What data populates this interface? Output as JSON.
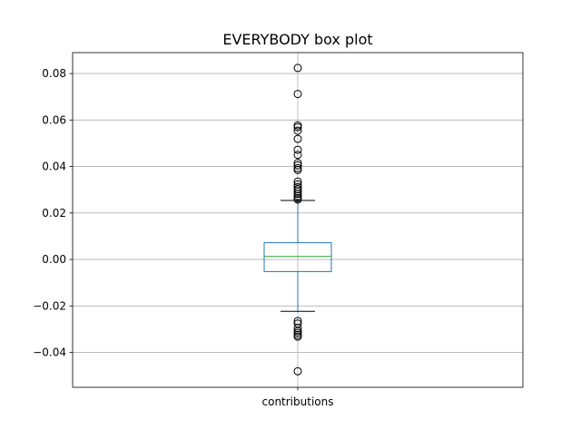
{
  "chart_data": {
    "type": "box",
    "title": "EVERYBODY box plot",
    "xlabel": "",
    "ylabel": "",
    "categories": [
      "contributions"
    ],
    "ylim": [
      -0.055,
      0.089
    ],
    "yticks": [
      {
        "value": -0.04,
        "label": "−0.04"
      },
      {
        "value": -0.02,
        "label": "−0.02"
      },
      {
        "value": 0.0,
        "label": "0.00"
      },
      {
        "value": 0.02,
        "label": "0.02"
      },
      {
        "value": 0.04,
        "label": "0.04"
      },
      {
        "value": 0.06,
        "label": "0.06"
      },
      {
        "value": 0.08,
        "label": "0.08"
      }
    ],
    "grid": true,
    "boxes": [
      {
        "name": "contributions",
        "whisker_low": -0.0223,
        "q1": -0.0052,
        "median": 0.0013,
        "q3": 0.0072,
        "whisker_high": 0.0254,
        "outliers": [
          0.0824,
          0.0712,
          0.0577,
          0.0569,
          0.0554,
          0.0519,
          0.0472,
          0.045,
          0.0415,
          0.0405,
          0.0393,
          0.0385,
          0.0335,
          0.0323,
          0.0312,
          0.0302,
          0.0293,
          0.0282,
          0.0273,
          0.0264,
          0.0258,
          -0.0265,
          -0.0276,
          -0.0295,
          -0.0308,
          -0.0316,
          -0.0325,
          -0.0332,
          -0.0481
        ]
      }
    ],
    "colors": {
      "box": "#1f77b4",
      "median": "#2ca02c",
      "whisker_cap": "#000000",
      "grid": "#b0b0b0",
      "outlier_edge": "#000000"
    }
  }
}
